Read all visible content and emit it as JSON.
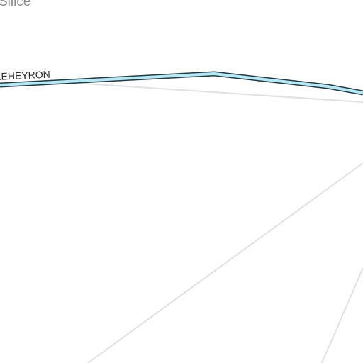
{
  "map": {
    "place_label": "Silice",
    "road_label": "LEHEYRON",
    "colors": {
      "background": "#ffffff",
      "minor_road": "#e1e1e1",
      "river_fill": "#b9e8f5",
      "river_casing": "#1f3a44",
      "place_label": "#8a8a8a",
      "road_label": "#2a2a2a"
    }
  }
}
